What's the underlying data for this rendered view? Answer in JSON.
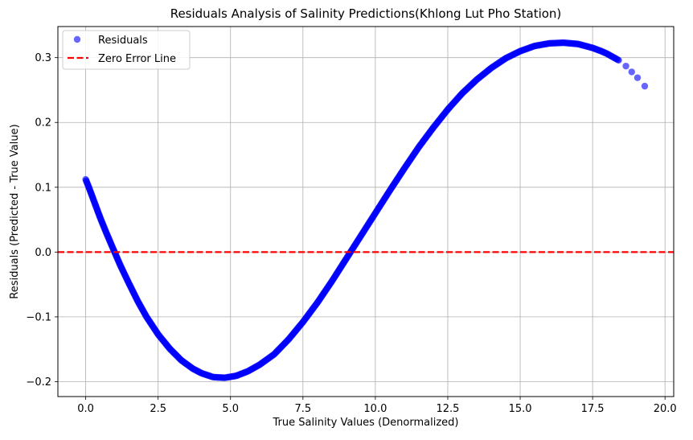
{
  "chart_data": {
    "type": "scatter",
    "title": "Residuals Analysis of Salinity Predictions(Khlong Lut Pho Station)",
    "xlabel": "True Salinity Values (Denormalized)",
    "ylabel": "Residuals (Predicted - True Value)",
    "xlim": [
      -0.96,
      20.3
    ],
    "ylim": [
      -0.223,
      0.348
    ],
    "xticks": [
      0.0,
      2.5,
      5.0,
      7.5,
      10.0,
      12.5,
      15.0,
      17.5,
      20.0
    ],
    "xtick_labels": [
      "0.0",
      "2.5",
      "5.0",
      "7.5",
      "10.0",
      "12.5",
      "15.0",
      "17.5",
      "20.0"
    ],
    "yticks": [
      -0.2,
      -0.1,
      0.0,
      0.1,
      0.2,
      0.3
    ],
    "ytick_labels": [
      "−0.2",
      "−0.1",
      "0.0",
      "0.1",
      "0.2",
      "0.3"
    ],
    "grid": true,
    "legend_position": "top-left",
    "series": [
      {
        "name": "Residuals",
        "kind": "scatter",
        "color": "#0000ff",
        "x": [
          0.0,
          0.1,
          0.2,
          0.35,
          0.5,
          0.7,
          0.9,
          1.2,
          1.5,
          1.8,
          2.1,
          2.5,
          2.9,
          3.3,
          3.7,
          4.0,
          4.4,
          4.8,
          5.2,
          5.6,
          6.0,
          6.5,
          7.0,
          7.5,
          8.0,
          8.5,
          9.0,
          9.5,
          10.0,
          10.5,
          11.0,
          11.5,
          12.0,
          12.5,
          13.0,
          13.5,
          14.0,
          14.5,
          15.0,
          15.5,
          16.0,
          16.5,
          17.0,
          17.5,
          17.8,
          18.0,
          18.2,
          18.4
        ],
        "y": [
          0.112,
          0.101,
          0.089,
          0.071,
          0.053,
          0.031,
          0.01,
          -0.021,
          -0.049,
          -0.076,
          -0.1,
          -0.127,
          -0.149,
          -0.167,
          -0.18,
          -0.187,
          -0.193,
          -0.194,
          -0.191,
          -0.184,
          -0.174,
          -0.158,
          -0.135,
          -0.108,
          -0.078,
          -0.045,
          -0.01,
          0.025,
          0.06,
          0.095,
          0.129,
          0.162,
          0.192,
          0.22,
          0.245,
          0.266,
          0.284,
          0.299,
          0.31,
          0.318,
          0.322,
          0.323,
          0.321,
          0.315,
          0.31,
          0.306,
          0.301,
          0.296
        ],
        "outliers": {
          "x": [
            18.65,
            18.85,
            19.05,
            19.3
          ],
          "y": [
            0.287,
            0.278,
            0.269,
            0.256
          ]
        }
      },
      {
        "name": "Zero Error Line",
        "kind": "hline",
        "y": 0.0,
        "color": "#ff0000",
        "style": "dashed"
      }
    ]
  }
}
